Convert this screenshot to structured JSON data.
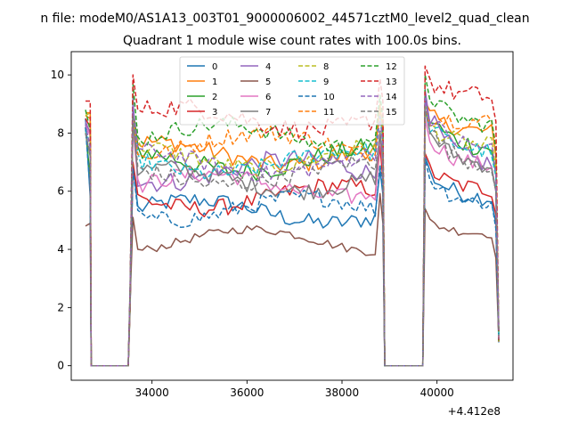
{
  "figure": {
    "suptitle": "n file: modeM0/AS1A13_003T01_9000006002_44571cztM0_level2_quad_clean",
    "offset_label": "+4.412e8"
  },
  "chart_data": {
    "type": "line",
    "title": "Quadrant 1 module wise count rates with 100.0s bins.",
    "xlabel": "",
    "ylabel": "",
    "x_offset": 441200000,
    "xlim": [
      32300,
      41600
    ],
    "ylim": [
      -0.5,
      10.8
    ],
    "xticks": [
      34000,
      36000,
      38000,
      40000
    ],
    "xtick_labels": [
      "34000",
      "36000",
      "38000",
      "40000"
    ],
    "yticks": [
      0,
      2,
      4,
      6,
      8,
      10
    ],
    "ytick_labels": [
      "0",
      "2",
      "4",
      "6",
      "8",
      "10"
    ],
    "grid": false,
    "legend_placement": "upper-center",
    "legend_columns": 4,
    "segments": [
      {
        "start": 32600,
        "end": 32700
      },
      {
        "start": 32700,
        "end": 33500
      },
      {
        "start": 33500,
        "end": 38900
      },
      {
        "start": 38900,
        "end": 39700
      },
      {
        "start": 39700,
        "end": 41300
      }
    ],
    "series": [
      {
        "name": "0",
        "color": "#1f77b4",
        "dashed": false,
        "high": 8.5,
        "first": 5.8,
        "top": 6.9,
        "level": 5.3,
        "tail": 5.7,
        "noise": 0.3
      },
      {
        "name": "1",
        "color": "#ff7f0e",
        "dashed": false,
        "high": 8.6,
        "first": 8.5,
        "top": 8.8,
        "level": 7.3,
        "tail": 8.0,
        "noise": 0.3
      },
      {
        "name": "2",
        "color": "#2ca02c",
        "dashed": false,
        "high": 8.2,
        "first": 6.4,
        "top": 8.9,
        "level": 7.1,
        "tail": 7.4,
        "noise": 0.35
      },
      {
        "name": "3",
        "color": "#d62728",
        "dashed": false,
        "high": 8.5,
        "first": 8.2,
        "top": 7.0,
        "level": 5.8,
        "tail": 6.0,
        "noise": 0.3
      },
      {
        "name": "4",
        "color": "#9467bd",
        "dashed": false,
        "high": 8.4,
        "first": 8.0,
        "top": 9.2,
        "level": 6.7,
        "tail": 6.8,
        "noise": 0.35
      },
      {
        "name": "5",
        "color": "#8c564b",
        "dashed": false,
        "high": 4.8,
        "first": 4.9,
        "top": 5.1,
        "level": 4.3,
        "tail": 4.5,
        "noise": 0.15
      },
      {
        "name": "6",
        "color": "#e377c2",
        "dashed": false,
        "high": 8.3,
        "first": 7.9,
        "top": 8.2,
        "level": 6.2,
        "tail": 6.8,
        "noise": 0.3
      },
      {
        "name": "7",
        "color": "#7f7f7f",
        "dashed": false,
        "high": 8.0,
        "first": 7.2,
        "top": 8.5,
        "level": 6.4,
        "tail": 6.8,
        "noise": 0.3
      },
      {
        "name": "8",
        "color": "#bcbd22",
        "dashed": true,
        "high": 8.6,
        "first": 8.7,
        "top": 8.5,
        "level": 7.2,
        "tail": 7.5,
        "noise": 0.3
      },
      {
        "name": "9",
        "color": "#17becf",
        "dashed": true,
        "high": 8.1,
        "first": 7.6,
        "top": 8.6,
        "level": 7.0,
        "tail": 7.3,
        "noise": 0.3
      },
      {
        "name": "10",
        "color": "#1f77b4",
        "dashed": true,
        "high": 8.2,
        "first": 6.0,
        "top": 6.8,
        "level": 5.4,
        "tail": 5.5,
        "noise": 0.3
      },
      {
        "name": "11",
        "color": "#ff7f0e",
        "dashed": true,
        "high": 8.7,
        "first": 8.7,
        "top": 8.6,
        "level": 7.6,
        "tail": 8.4,
        "noise": 0.3
      },
      {
        "name": "12",
        "color": "#2ca02c",
        "dashed": true,
        "high": 8.8,
        "first": 8.1,
        "top": 9.7,
        "level": 7.9,
        "tail": 8.2,
        "noise": 0.3
      },
      {
        "name": "13",
        "color": "#d62728",
        "dashed": true,
        "high": 9.1,
        "first": 9.1,
        "top": 10.0,
        "level": 8.5,
        "tail": 9.2,
        "noise": 0.35
      },
      {
        "name": "14",
        "color": "#9467bd",
        "dashed": true,
        "high": 8.3,
        "first": 7.5,
        "top": 8.9,
        "level": 7.0,
        "tail": 7.4,
        "noise": 0.3
      },
      {
        "name": "15",
        "color": "#7f7f7f",
        "dashed": true,
        "high": 8.0,
        "first": 7.3,
        "top": 8.6,
        "level": 6.6,
        "tail": 6.8,
        "noise": 0.3
      }
    ]
  }
}
